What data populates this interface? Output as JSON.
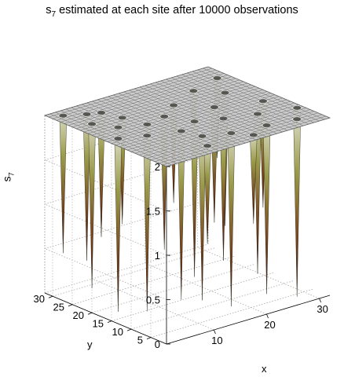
{
  "chart_data": {
    "type": "surface3d",
    "title": {
      "prefix": "s",
      "subscript": "7",
      "suffix": " estimated at each site after 10000 observations"
    },
    "xlabel": "x",
    "ylabel": "y",
    "zlabel": {
      "prefix": "s",
      "subscript": "7"
    },
    "x_ticks": [
      "10",
      "20",
      "30"
    ],
    "y_ticks": [
      "5",
      "10",
      "15",
      "20",
      "25",
      "30"
    ],
    "z_ticks": [
      "0",
      "0.5",
      "1",
      "1.5",
      "2"
    ],
    "xlim": [
      1,
      32
    ],
    "ylim": [
      1,
      32
    ],
    "zlim": [
      0,
      2
    ],
    "grid": true,
    "surface_baseline": 2.0,
    "spikes": [
      {
        "x": 3,
        "y": 30,
        "z": 0.45
      },
      {
        "x": 6,
        "y": 28,
        "z": 0.35
      },
      {
        "x": 4,
        "y": 24,
        "z": 0.15
      },
      {
        "x": 8,
        "y": 27,
        "z": 0.6
      },
      {
        "x": 6,
        "y": 20,
        "z": 0.2
      },
      {
        "x": 9,
        "y": 23,
        "z": 0.8
      },
      {
        "x": 3,
        "y": 16,
        "z": 0.05
      },
      {
        "x": 7,
        "y": 14,
        "z": 0.02
      },
      {
        "x": 10,
        "y": 18,
        "z": 0.3
      },
      {
        "x": 12,
        "y": 12,
        "z": 0.1
      },
      {
        "x": 14,
        "y": 19,
        "z": 0.5
      },
      {
        "x": 13,
        "y": 8,
        "z": 0.15
      },
      {
        "x": 16,
        "y": 14,
        "z": 0.25
      },
      {
        "x": 18,
        "y": 22,
        "z": 0.9
      },
      {
        "x": 17,
        "y": 6,
        "z": 0.05
      },
      {
        "x": 20,
        "y": 12,
        "z": 0.4
      },
      {
        "x": 22,
        "y": 17,
        "z": 0.7
      },
      {
        "x": 23,
        "y": 5,
        "z": 0.1
      },
      {
        "x": 25,
        "y": 10,
        "z": 0.2
      },
      {
        "x": 27,
        "y": 21,
        "z": 0.5
      },
      {
        "x": 28,
        "y": 4,
        "z": 0.0
      },
      {
        "x": 29,
        "y": 14,
        "z": 0.8
      },
      {
        "x": 31,
        "y": 8,
        "z": 0.6
      },
      {
        "x": 30,
        "y": 27,
        "z": 1.1
      },
      {
        "x": 11,
        "y": 4,
        "z": 0.9
      },
      {
        "x": 19,
        "y": 3,
        "z": 1.0
      },
      {
        "x": 24,
        "y": 25,
        "z": 1.2
      }
    ]
  }
}
